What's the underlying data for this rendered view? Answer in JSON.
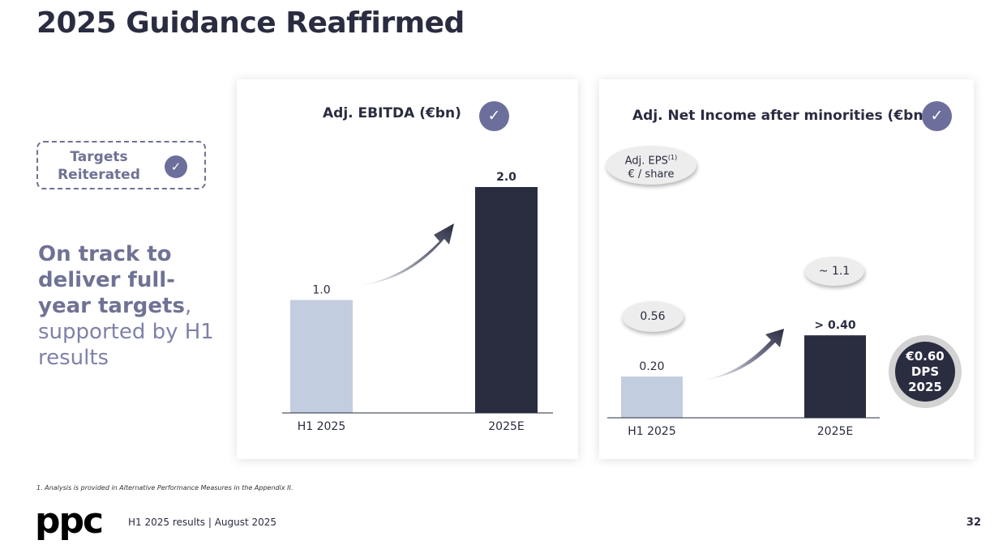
{
  "title": "2025 Guidance Reaffirmed",
  "targets_label": "Targets Reiterated",
  "check_glyph": "✓",
  "track_text": {
    "bold": "On track to deliver full-year targets",
    "comma": ",",
    "rest": "supported by H1 results"
  },
  "colors": {
    "dark_bar": "#2a2c40",
    "light_bar": "#c3cde0",
    "accent": "#6c6f9c"
  },
  "chart_data": [
    {
      "type": "bar",
      "title": "Adj. EBITDA (€bn)",
      "categories": [
        "H1 2025",
        "2025E"
      ],
      "values": [
        1.0,
        2.0
      ],
      "value_labels": [
        "1.0",
        "2.0"
      ],
      "ylim": [
        0,
        2.0
      ],
      "annotation": "growth-arrow"
    },
    {
      "type": "bar",
      "title": "Adj. Net Income after minorities (€bn)",
      "categories": [
        "H1 2025",
        "2025E"
      ],
      "values": [
        0.2,
        0.4
      ],
      "value_labels": [
        "0.20",
        "> 0.40"
      ],
      "ylim": [
        0,
        0.487
      ],
      "eps": {
        "label_main": "Adj. EPS",
        "label_sup": "(1)",
        "label_unit": "€ / share",
        "values": [
          "0.56",
          "~ 1.1"
        ]
      },
      "dps": {
        "value": "€0.60",
        "label": "DPS",
        "year": "2025"
      }
    }
  ],
  "footnote": "1. Analysis is provided in Alternative Performance Measures in the Appendix II.",
  "logo_text": "ppc",
  "footer_text": "H1 2025 results | August 2025",
  "page_number": "32"
}
